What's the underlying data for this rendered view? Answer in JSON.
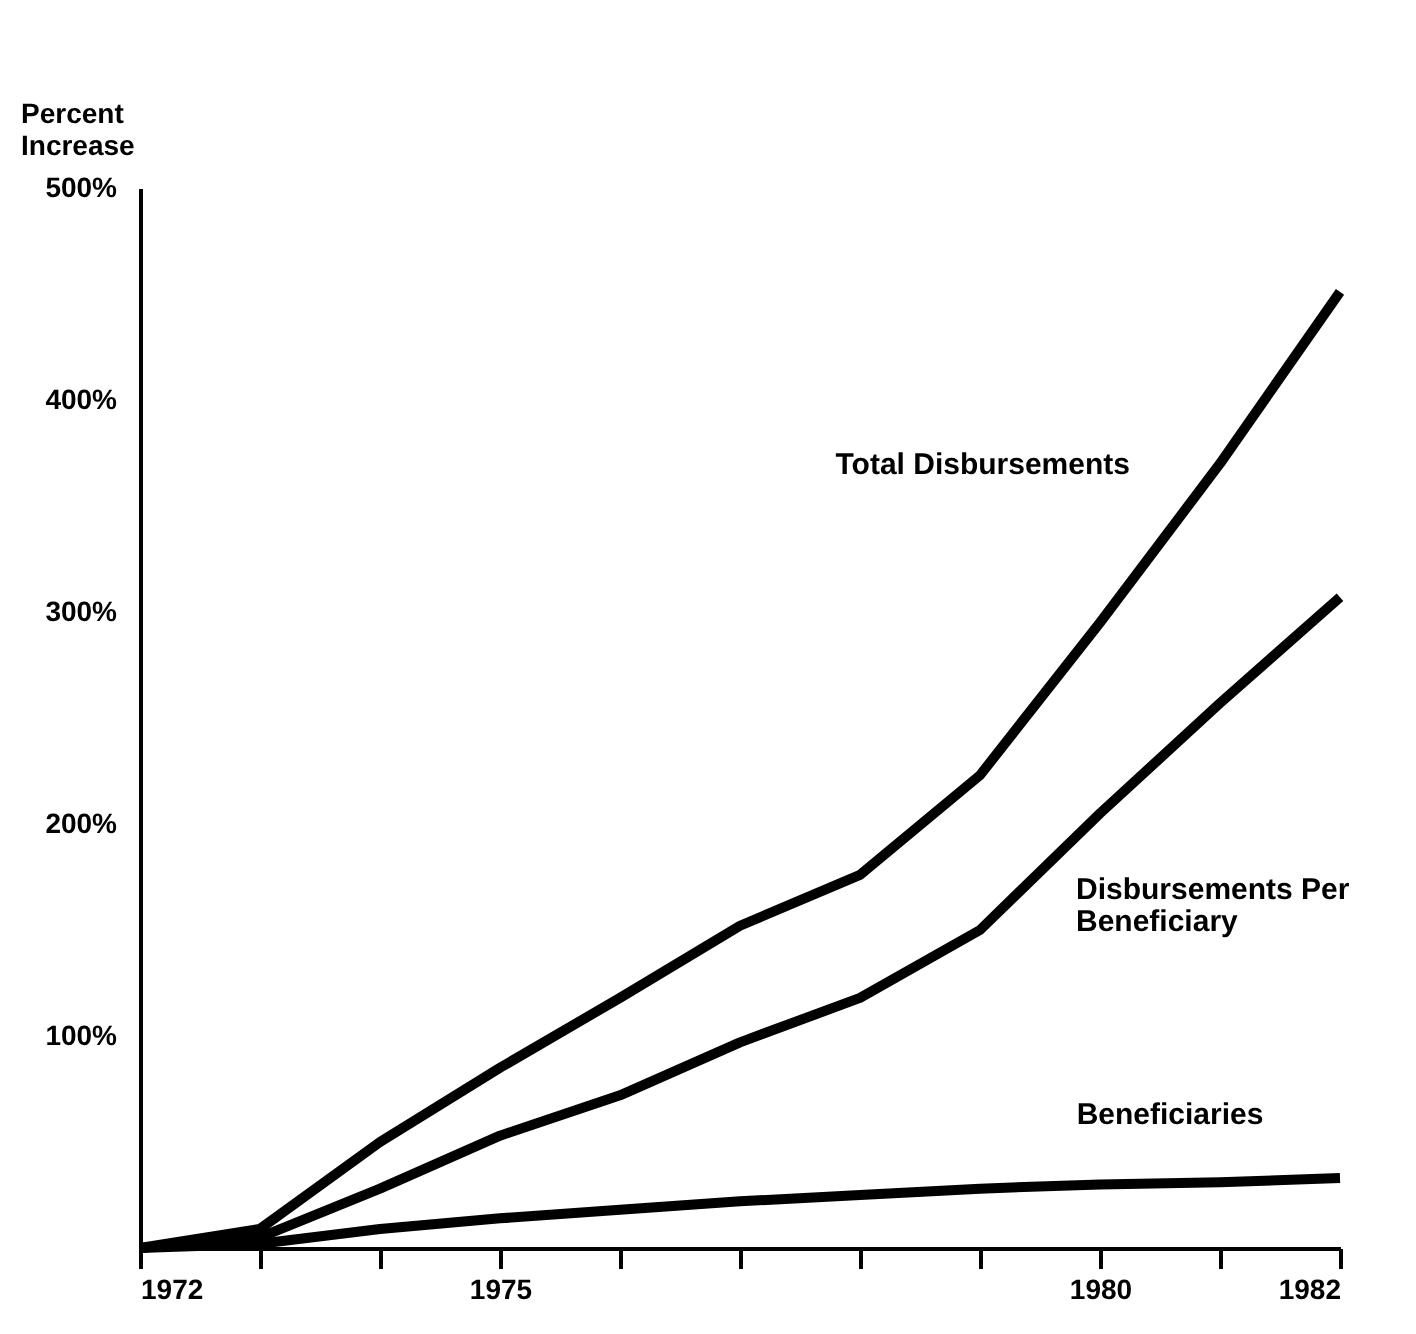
{
  "chart_data": {
    "type": "line",
    "ylabel": "Percent Increase",
    "x": [
      1972,
      1973,
      1974,
      1975,
      1976,
      1977,
      1978,
      1979,
      1980,
      1981,
      1982
    ],
    "xlim": [
      1972,
      1982
    ],
    "xticks": [
      1972,
      {
        "value": 1973,
        "label": null
      },
      {
        "value": 1974,
        "label": null
      },
      1975,
      {
        "value": 1976,
        "label": null
      },
      {
        "value": 1977,
        "label": null
      },
      {
        "value": 1978,
        "label": null
      },
      {
        "value": 1979,
        "label": null
      },
      1980,
      {
        "value": 1981,
        "label": null
      },
      1982
    ],
    "ylim": [
      0,
      500
    ],
    "yticks": [
      {
        "value": 100,
        "label": "100%"
      },
      {
        "value": 200,
        "label": "200%"
      },
      {
        "value": 300,
        "label": "300%"
      },
      {
        "value": 400,
        "label": "400%"
      },
      {
        "value": 500,
        "label": "500%"
      }
    ],
    "series": [
      {
        "name": "Total Disbursements",
        "color": "#000000",
        "values": [
          0,
          9,
          50,
          85,
          118,
          152,
          176,
          223,
          295,
          370,
          451
        ]
      },
      {
        "name": "Disbursements Per Beneficiary",
        "color": "#000000",
        "values": [
          0,
          5,
          28,
          53,
          72,
          97,
          118,
          150,
          205,
          257,
          307
        ]
      },
      {
        "name": "Beneficiaries",
        "color": "#000000",
        "values": [
          0,
          2,
          9,
          14,
          18,
          22,
          25,
          28,
          30,
          31,
          33
        ]
      }
    ],
    "grid": false,
    "legend": false,
    "marker": "none",
    "line_style": "solid"
  }
}
